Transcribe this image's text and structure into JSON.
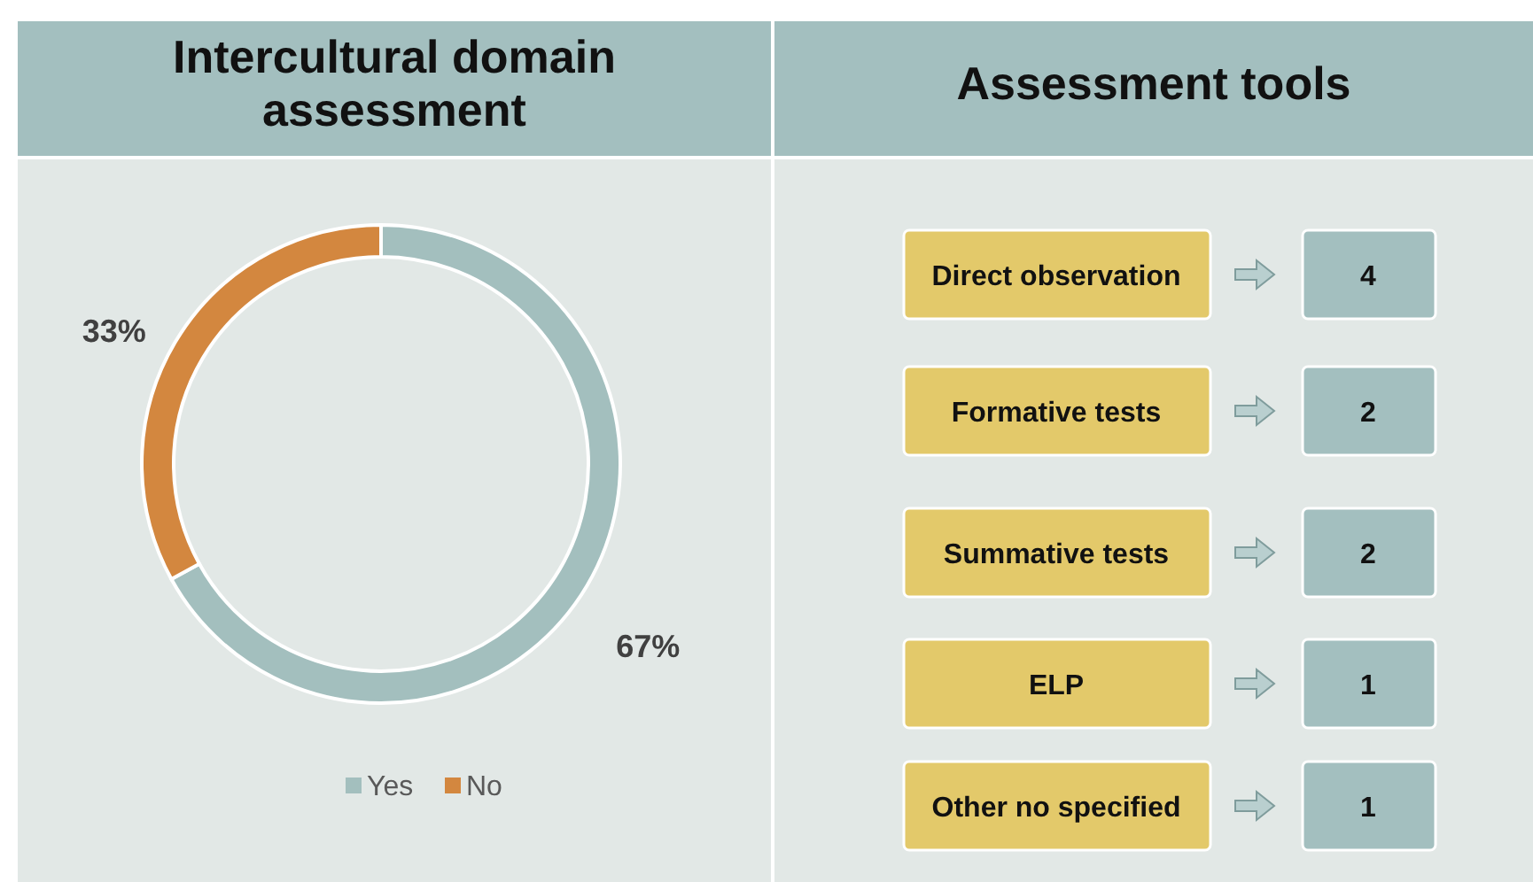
{
  "chart_data": [
    {
      "type": "donut",
      "title": "Intercultural domain assessment",
      "categories": [
        "Yes",
        "No"
      ],
      "values": [
        67,
        33
      ],
      "value_labels": [
        "67%",
        "33%"
      ],
      "colors": [
        "#a3bfbe",
        "#d3873f"
      ],
      "data_labels": true,
      "legend": "bottom"
    },
    {
      "type": "other",
      "title": "Assessment tools",
      "categories": [
        "Direct observation",
        "Formative tests",
        "Summative tests",
        "ELP",
        "Other no specified"
      ],
      "values": [
        4,
        2,
        2,
        1,
        1
      ],
      "data_labels": true
    }
  ]
}
